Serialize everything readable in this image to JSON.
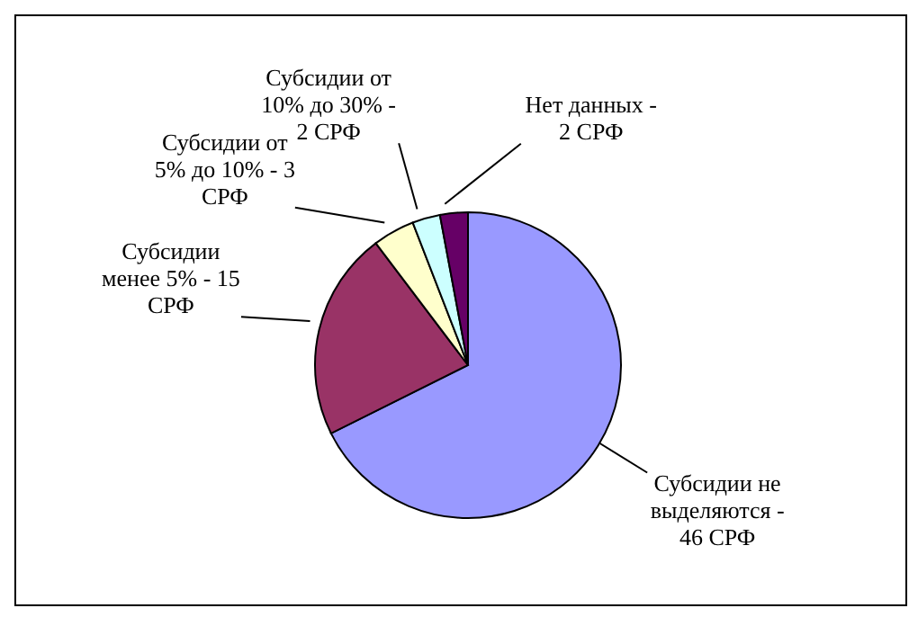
{
  "chart_data": {
    "type": "pie",
    "categories": [
      "Субсидии не выделяются -",
      "Субсидии менее 5% -",
      "Субсидии от 5% до 10% -",
      "Субсидии от 10% до 30% -",
      "Нет данных -"
    ],
    "values": [
      46,
      15,
      3,
      2,
      2
    ],
    "value_labels": [
      "46 СРФ",
      "15 СРФ",
      "3 СРФ",
      "2 СРФ",
      "2 СРФ"
    ],
    "colors": [
      "#9999ff",
      "#993366",
      "#ffffcc",
      "#ccffff",
      "#660066"
    ]
  }
}
